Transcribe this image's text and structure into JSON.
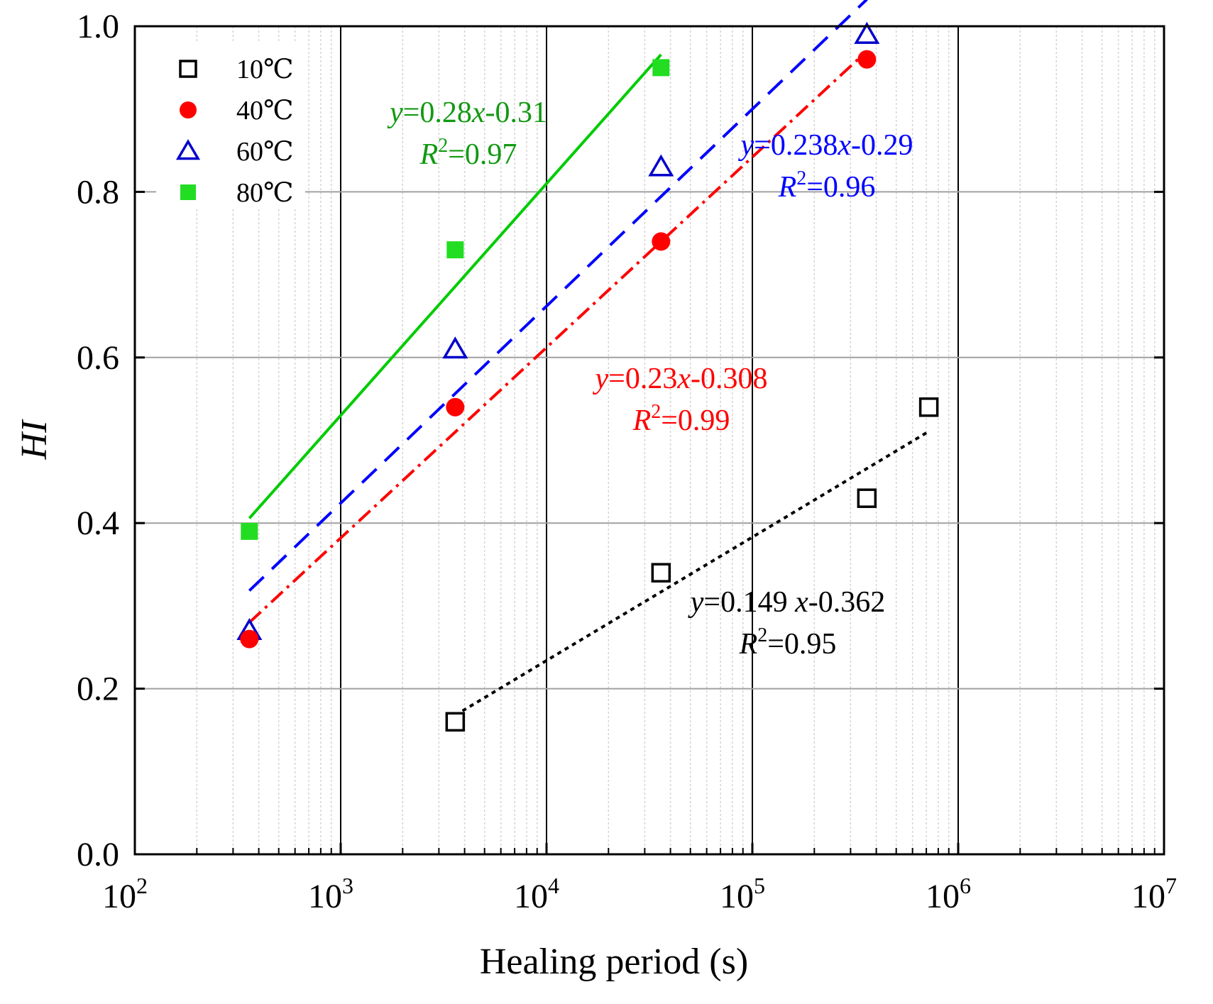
{
  "chart_data": {
    "type": "scatter",
    "title": "",
    "xlabel": "Healing period (s)",
    "ylabel": "HI",
    "x_scale": "log",
    "xlim": [
      100,
      10000000
    ],
    "ylim": [
      0.0,
      1.0
    ],
    "x_ticks": [
      {
        "value": 100,
        "base": "10",
        "exp": "2"
      },
      {
        "value": 1000,
        "base": "10",
        "exp": "3"
      },
      {
        "value": 10000,
        "base": "10",
        "exp": "4"
      },
      {
        "value": 100000,
        "base": "10",
        "exp": "5"
      },
      {
        "value": 1000000,
        "base": "10",
        "exp": "6"
      },
      {
        "value": 10000000,
        "base": "10",
        "exp": "7"
      }
    ],
    "y_ticks": [
      "0.0",
      "0.2",
      "0.4",
      "0.6",
      "0.8",
      "1.0"
    ],
    "legend_position": "top-left",
    "series": [
      {
        "name": "10℃",
        "marker": "open-square",
        "color": "#000000",
        "points": [
          {
            "x": 3600,
            "y": 0.16
          },
          {
            "x": 36000,
            "y": 0.34
          },
          {
            "x": 360000,
            "y": 0.43
          },
          {
            "x": 720000,
            "y": 0.54
          }
        ],
        "fit": {
          "style": "dotted",
          "x_range": [
            3600,
            720000
          ],
          "slope": 0.149,
          "intercept": -0.362
        },
        "equation": {
          "y_sym": "y",
          "rhs_pre": "=0.149 ",
          "x_sym": "x",
          "rhs_post": "-0.362",
          "r2_sym": "R",
          "r2_sup": "2",
          "r2_val": "=0.95"
        }
      },
      {
        "name": "40℃",
        "marker": "filled-circle",
        "color": "#ff0000",
        "points": [
          {
            "x": 360,
            "y": 0.26
          },
          {
            "x": 3600,
            "y": 0.54
          },
          {
            "x": 36000,
            "y": 0.74
          },
          {
            "x": 360000,
            "y": 0.96
          }
        ],
        "fit": {
          "style": "dash-dot",
          "x_range": [
            360,
            360000
          ],
          "slope": 0.23,
          "intercept": -0.308
        },
        "equation": {
          "y_sym": "y",
          "rhs_pre": "=0.23",
          "x_sym": "x",
          "rhs_post": "-0.308",
          "r2_sym": "R",
          "r2_sup": "2",
          "r2_val": "=0.99"
        }
      },
      {
        "name": "60℃",
        "marker": "open-triangle",
        "color": "#0000cc",
        "points": [
          {
            "x": 360,
            "y": 0.27
          },
          {
            "x": 3600,
            "y": 0.61
          },
          {
            "x": 36000,
            "y": 0.83
          },
          {
            "x": 360000,
            "y": 0.99
          }
        ],
        "fit": {
          "style": "dashed",
          "x_range": [
            360,
            360000
          ],
          "slope": 0.238,
          "intercept": -0.29
        },
        "equation": {
          "y_sym": "y",
          "rhs_pre": "=0.238",
          "x_sym": "x",
          "rhs_post": "-0.29",
          "r2_sym": "R",
          "r2_sup": "2",
          "r2_val": "=0.96"
        }
      },
      {
        "name": "80℃",
        "marker": "filled-square",
        "color": "#22dd22",
        "points": [
          {
            "x": 360,
            "y": 0.39
          },
          {
            "x": 3600,
            "y": 0.73
          },
          {
            "x": 36000,
            "y": 0.95
          }
        ],
        "fit": {
          "style": "solid",
          "x_range": [
            360,
            36000
          ],
          "slope": 0.28,
          "intercept": -0.31
        },
        "equation": {
          "y_sym": "y",
          "rhs_pre": "=0.28",
          "x_sym": "x",
          "rhs_post": "-0.31",
          "r2_sym": "R",
          "r2_sup": "2",
          "r2_val": "=0.97"
        }
      }
    ],
    "colors": {
      "fit_10": "#000000",
      "fit_40": "#ff0000",
      "fit_60": "#0000ff",
      "fit_80": "#00cc00",
      "eq_80": "#119911",
      "grid": "#a0a0a0",
      "minor_grid": "#d4d4d4"
    }
  }
}
